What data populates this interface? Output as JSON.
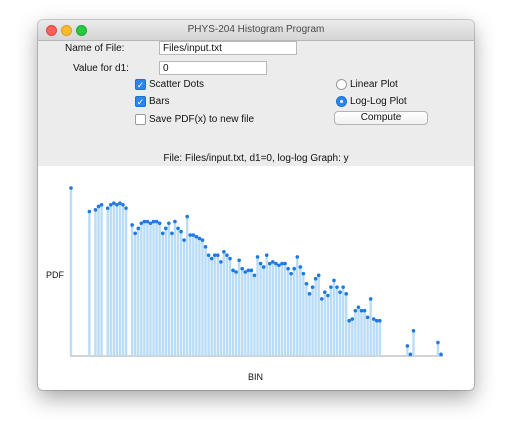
{
  "window": {
    "title": "PHYS-204 Histogram Program"
  },
  "form": {
    "file_label": "Name of File:",
    "file_value": "Files/input.txt",
    "d1_label": "Value for d1:",
    "d1_value": "0"
  },
  "options": {
    "scatter_label": "Scatter Dots",
    "scatter_checked": true,
    "bars_label": "Bars",
    "bars_checked": true,
    "save_label": "Save PDF(x) to new file",
    "save_checked": false,
    "linear_label": "Linear Plot",
    "linear_selected": false,
    "loglog_label": "Log-Log Plot",
    "loglog_selected": true,
    "compute_label": "Compute"
  },
  "status": "File: Files/input.txt, d1=0, log-log Graph: y",
  "colors": {
    "bar": "#b9dcf7",
    "dot": "#1f7ae0",
    "accent": "#2a86ee"
  },
  "chart_data": {
    "type": "scatter",
    "xlabel": "BIN",
    "ylabel": "PDF",
    "ylim": [
      0,
      100
    ],
    "bars": true,
    "points": [
      [
        0,
        100
      ],
      [
        6,
        86
      ],
      [
        8,
        87
      ],
      [
        9,
        89
      ],
      [
        10,
        90
      ],
      [
        12,
        88
      ],
      [
        13,
        90
      ],
      [
        14,
        91
      ],
      [
        15,
        90
      ],
      [
        16,
        91
      ],
      [
        17,
        90
      ],
      [
        18,
        88
      ],
      [
        20,
        78
      ],
      [
        21,
        73
      ],
      [
        22,
        76
      ],
      [
        23,
        79
      ],
      [
        24,
        80
      ],
      [
        25,
        80
      ],
      [
        26,
        79
      ],
      [
        27,
        80
      ],
      [
        28,
        80
      ],
      [
        29,
        79
      ],
      [
        30,
        73
      ],
      [
        31,
        76
      ],
      [
        32,
        79
      ],
      [
        33,
        73
      ],
      [
        34,
        80
      ],
      [
        35,
        76
      ],
      [
        36,
        74
      ],
      [
        37,
        69
      ],
      [
        38,
        83
      ],
      [
        39,
        72
      ],
      [
        40,
        72
      ],
      [
        41,
        71
      ],
      [
        42,
        70
      ],
      [
        43,
        69
      ],
      [
        44,
        65
      ],
      [
        45,
        60
      ],
      [
        46,
        58
      ],
      [
        47,
        60
      ],
      [
        48,
        60
      ],
      [
        49,
        56
      ],
      [
        50,
        62
      ],
      [
        51,
        60
      ],
      [
        52,
        58
      ],
      [
        53,
        51
      ],
      [
        54,
        50
      ],
      [
        55,
        57
      ],
      [
        56,
        52
      ],
      [
        57,
        50
      ],
      [
        58,
        51
      ],
      [
        59,
        51
      ],
      [
        60,
        48
      ],
      [
        61,
        59
      ],
      [
        62,
        55
      ],
      [
        63,
        53
      ],
      [
        64,
        60
      ],
      [
        65,
        55
      ],
      [
        66,
        56
      ],
      [
        67,
        55
      ],
      [
        68,
        54
      ],
      [
        69,
        55
      ],
      [
        70,
        55
      ],
      [
        71,
        52
      ],
      [
        72,
        49
      ],
      [
        73,
        52
      ],
      [
        74,
        59
      ],
      [
        75,
        53
      ],
      [
        76,
        49
      ],
      [
        77,
        43
      ],
      [
        78,
        37
      ],
      [
        79,
        41
      ],
      [
        80,
        46
      ],
      [
        81,
        48
      ],
      [
        82,
        34
      ],
      [
        83,
        38
      ],
      [
        84,
        36
      ],
      [
        85,
        41
      ],
      [
        86,
        45
      ],
      [
        87,
        41
      ],
      [
        88,
        38
      ],
      [
        89,
        41
      ],
      [
        90,
        37
      ],
      [
        91,
        21
      ],
      [
        92,
        22
      ],
      [
        93,
        27
      ],
      [
        94,
        29
      ],
      [
        95,
        27
      ],
      [
        96,
        27
      ],
      [
        97,
        23
      ],
      [
        98,
        34
      ],
      [
        99,
        22
      ],
      [
        100,
        21
      ],
      [
        101,
        21
      ],
      [
        110,
        6
      ],
      [
        111,
        1
      ],
      [
        112,
        15
      ],
      [
        120,
        8
      ],
      [
        121,
        1
      ]
    ]
  }
}
